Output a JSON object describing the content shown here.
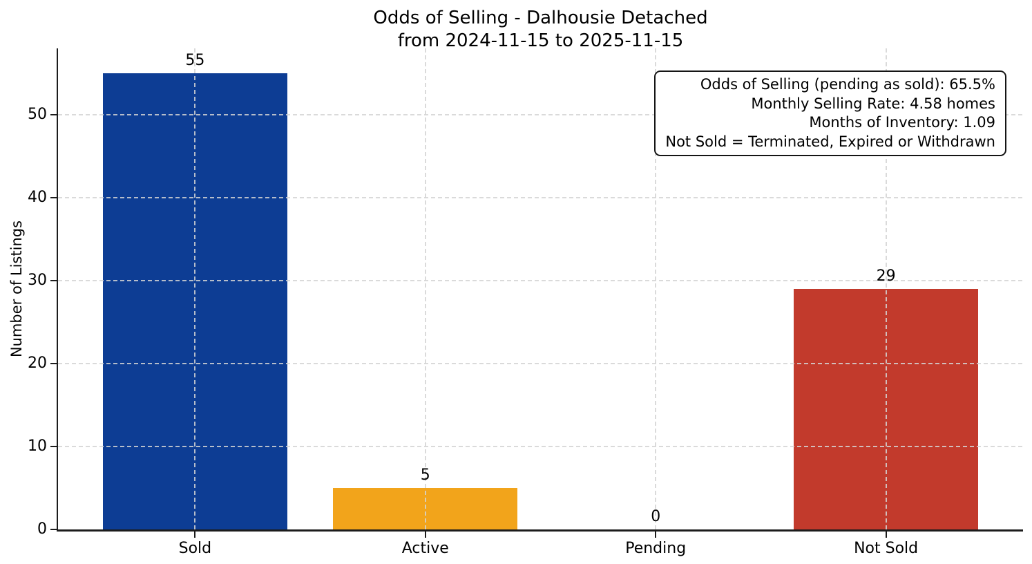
{
  "chart_data": {
    "type": "bar",
    "title": "Odds of Selling - Dalhousie Detached",
    "subtitle": "from 2024-11-15 to 2025-11-15",
    "categories": [
      "Sold",
      "Active",
      "Pending",
      "Not Sold"
    ],
    "values": [
      55,
      5,
      0,
      29
    ],
    "bar_colors": [
      "#0d3d94",
      "#f2a41b",
      null,
      "#c23a2c"
    ],
    "xlabel": "",
    "ylabel": "Number of Listings",
    "yticks": [
      0,
      10,
      20,
      30,
      40,
      50
    ],
    "ylim": [
      0,
      58
    ],
    "grid": true,
    "grid_style": "dashed",
    "legend": false,
    "annotation": {
      "position": "top-right",
      "lines": [
        "Odds of Selling (pending as sold): 65.5%",
        "Monthly Selling Rate: 4.58 homes",
        "Months of Inventory: 1.09",
        "Not Sold = Terminated, Expired or Withdrawn"
      ]
    }
  },
  "style": {
    "background": "#ffffff",
    "axis_color": "#1c1c1c",
    "grid_color": "#d4d4d4",
    "text_color": "#000000"
  }
}
